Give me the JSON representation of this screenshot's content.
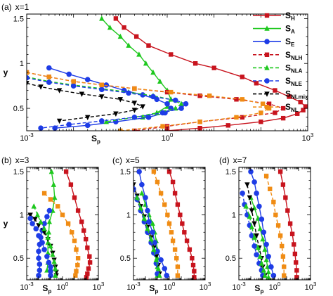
{
  "figure": {
    "legend": [
      {
        "key": "SH",
        "main": "S",
        "sub": "H",
        "color": "#c8141e",
        "dash": false,
        "marker": "square"
      },
      {
        "key": "SA",
        "main": "S",
        "sub": "A",
        "color": "#1ec81e",
        "dash": false,
        "marker": "triangle"
      },
      {
        "key": "SE",
        "main": "S",
        "sub": "E",
        "color": "#1e3ce6",
        "dash": false,
        "marker": "circle"
      },
      {
        "key": "SNLH",
        "main": "S",
        "sub": "NLH",
        "color": "#c8141e",
        "dash": true,
        "marker": "square"
      },
      {
        "key": "SNLA",
        "main": "S",
        "sub": "NLA",
        "color": "#1ec81e",
        "dash": true,
        "marker": "triangle"
      },
      {
        "key": "SNLE",
        "main": "S",
        "sub": "NLE",
        "color": "#1e3ce6",
        "dash": true,
        "marker": "circle"
      },
      {
        "key": "SNLmix",
        "main": "S",
        "sub": "NLmix",
        "color": "#000000",
        "dash": true,
        "marker": "triangle-down"
      },
      {
        "key": "SNL",
        "main": "S",
        "sub": "NL",
        "color": "#f08c14",
        "dash": true,
        "marker": "square"
      }
    ],
    "axes": {
      "xlabel_main": "S",
      "xlabel_sub": "p",
      "ylabel": "y",
      "xticks_top": [
        {
          "base": "10",
          "exp": "-3"
        },
        {
          "base": "10",
          "exp": "0"
        },
        {
          "base": "10",
          "exp": "3"
        }
      ],
      "xticks_bottom": [
        {
          "base": "10",
          "exp": "-3"
        },
        {
          "base": "10",
          "exp": "0"
        },
        {
          "base": "10",
          "exp": "3"
        }
      ],
      "yticks_top": [
        "1.5",
        "1",
        "0.5"
      ],
      "yticks_bottom": [
        "1.5",
        "1",
        "0.5"
      ]
    }
  },
  "chart_data": [
    {
      "type": "line",
      "panel": "(a)",
      "title": "x=1",
      "xscale": "log",
      "xlim": [
        0.001,
        1000
      ],
      "ylim": [
        0.25,
        1.55
      ],
      "series": [
        {
          "name": "SH",
          "x": [
            0.08,
            0.12,
            0.22,
            0.4,
            1.2,
            4,
            10,
            40,
            80,
            200,
            400,
            700,
            900,
            800,
            600,
            300,
            100,
            20,
            5,
            1
          ],
          "y": [
            1.5,
            1.4,
            1.3,
            1.2,
            1.1,
            1.0,
            0.95,
            0.85,
            0.78,
            0.7,
            0.63,
            0.57,
            0.52,
            0.48,
            0.44,
            0.39,
            0.35,
            0.31,
            0.28,
            0.25
          ]
        },
        {
          "name": "SA",
          "x": [
            0.04,
            0.06,
            0.1,
            0.15,
            0.25,
            0.35,
            0.5,
            0.7,
            1.0,
            1.2,
            1.0,
            0.6,
            0.3
          ],
          "y": [
            1.5,
            1.4,
            1.3,
            1.2,
            1.1,
            1.0,
            0.9,
            0.8,
            0.7,
            0.6,
            0.52,
            0.45,
            0.4
          ]
        },
        {
          "name": "SE",
          "x": [
            0.003,
            0.008,
            0.02,
            0.05,
            0.12,
            0.3,
            0.6,
            1.0,
            1.2,
            0.9,
            0.4,
            0.08,
            0.02,
            0.004
          ],
          "y": [
            0.95,
            0.88,
            0.82,
            0.76,
            0.7,
            0.65,
            0.6,
            0.55,
            0.5,
            0.45,
            0.4,
            0.35,
            0.31,
            0.28
          ]
        },
        {
          "name": "SNLH",
          "x": [
            0.001,
            0.003,
            0.01,
            0.04,
            0.2,
            1,
            5,
            30,
            150,
            300,
            200,
            40,
            5,
            1,
            0.2
          ],
          "y": [
            0.9,
            0.85,
            0.8,
            0.76,
            0.72,
            0.68,
            0.64,
            0.6,
            0.55,
            0.5,
            0.45,
            0.4,
            0.35,
            0.3,
            0.25
          ]
        },
        {
          "name": "SNLA",
          "x": [
            0.001,
            0.003,
            0.01,
            0.04,
            0.15,
            0.5,
            1.2,
            2,
            1.5,
            0.6,
            0.2,
            0.05
          ],
          "y": [
            0.85,
            0.8,
            0.76,
            0.72,
            0.68,
            0.64,
            0.6,
            0.55,
            0.5,
            0.45,
            0.4,
            0.35
          ]
        },
        {
          "name": "SNLE",
          "x": [
            0.001,
            0.003,
            0.01,
            0.04,
            0.15,
            0.5,
            1.5,
            2.5,
            2.0,
            0.8,
            0.2,
            0.04,
            0.008,
            0.002
          ],
          "y": [
            0.84,
            0.79,
            0.75,
            0.71,
            0.67,
            0.63,
            0.59,
            0.55,
            0.5,
            0.45,
            0.4,
            0.36,
            0.32,
            0.28
          ]
        },
        {
          "name": "SNLmix",
          "x": [
            0.001,
            0.002,
            0.005,
            0.015,
            0.04,
            0.1,
            0.2,
            0.3,
            0.2,
            0.08,
            0.02,
            0.005
          ],
          "y": [
            0.78,
            0.74,
            0.7,
            0.66,
            0.63,
            0.6,
            0.56,
            0.52,
            0.48,
            0.44,
            0.4,
            0.36
          ]
        },
        {
          "name": "SNL",
          "x": [
            0.001,
            0.003,
            0.01,
            0.04,
            0.2,
            1.2,
            8,
            40,
            110,
            150,
            100,
            30,
            5,
            0.8,
            0.1
          ],
          "y": [
            0.9,
            0.85,
            0.8,
            0.76,
            0.72,
            0.68,
            0.64,
            0.6,
            0.55,
            0.5,
            0.45,
            0.4,
            0.35,
            0.3,
            0.25
          ]
        }
      ]
    },
    {
      "type": "line",
      "panel": "(b)",
      "title": "x=3",
      "xscale": "log",
      "xlim": [
        0.001,
        1000
      ],
      "ylim": [
        0.25,
        1.55
      ],
      "series": [
        {
          "name": "SH",
          "x": [
            2,
            5,
            10,
            20,
            40,
            60,
            90,
            120,
            180,
            200,
            150,
            120,
            100
          ],
          "y": [
            1.5,
            1.35,
            1.2,
            1.05,
            0.92,
            0.82,
            0.72,
            0.62,
            0.52,
            0.45,
            0.38,
            0.32,
            0.28
          ]
        },
        {
          "name": "SA",
          "x": [
            0.12,
            0.18,
            0.22,
            0.15,
            0.08,
            0.07,
            0.06,
            0.06,
            0.06,
            0.05
          ],
          "y": [
            1.5,
            1.35,
            1.2,
            1.05,
            0.92,
            0.8,
            0.68,
            0.56,
            0.45,
            0.36
          ]
        },
        {
          "name": "SE",
          "x": [
            0.08,
            0.05,
            0.03,
            0.02,
            0.015,
            0.012,
            0.01,
            0.01,
            0.012,
            0.012,
            0.01
          ],
          "y": [
            1.05,
            0.98,
            0.9,
            0.82,
            0.74,
            0.66,
            0.58,
            0.5,
            0.43,
            0.36,
            0.3
          ]
        },
        {
          "name": "SNL",
          "x": [
            0.03,
            0.1,
            0.4,
            1,
            3,
            6,
            10,
            14,
            20,
            18,
            14,
            12
          ],
          "y": [
            1.25,
            1.18,
            1.1,
            1.0,
            0.9,
            0.8,
            0.7,
            0.6,
            0.5,
            0.42,
            0.35,
            0.3
          ]
        },
        {
          "name": "SNLmix",
          "x": [
            0.002,
            0.005,
            0.01,
            0.03,
            0.06,
            0.1,
            0.15,
            0.2,
            0.25,
            0.3,
            0.3
          ],
          "y": [
            1.0,
            0.95,
            0.88,
            0.8,
            0.72,
            0.64,
            0.56,
            0.48,
            0.4,
            0.34,
            0.3
          ]
        },
        {
          "name": "SNLE",
          "x": [
            0.002,
            0.003,
            0.006,
            0.01,
            0.02,
            0.03,
            0.05,
            0.07,
            0.1,
            0.1,
            0.1
          ],
          "y": [
            0.96,
            0.9,
            0.84,
            0.76,
            0.68,
            0.6,
            0.52,
            0.45,
            0.4,
            0.35,
            0.3
          ]
        },
        {
          "name": "SNLA",
          "x": [
            0.004,
            0.008,
            0.015,
            0.03,
            0.06,
            0.1,
            0.15,
            0.2,
            0.25,
            0.25
          ],
          "y": [
            1.1,
            1.0,
            0.92,
            0.84,
            0.74,
            0.64,
            0.54,
            0.46,
            0.38,
            0.3
          ]
        }
      ]
    },
    {
      "type": "line",
      "panel": "(c)",
      "title": "x=5",
      "xscale": "log",
      "xlim": [
        0.001,
        1000
      ],
      "ylim": [
        0.25,
        1.55
      ],
      "series": [
        {
          "name": "SH",
          "x": [
            1,
            2,
            3,
            5,
            8,
            12,
            18,
            30,
            50,
            80,
            100,
            120,
            120
          ],
          "y": [
            1.5,
            1.38,
            1.25,
            1.12,
            1.0,
            0.9,
            0.8,
            0.7,
            0.6,
            0.5,
            0.42,
            0.35,
            0.28
          ]
        },
        {
          "name": "SNL",
          "x": [
            0.05,
            0.1,
            0.2,
            0.4,
            0.7,
            1,
            1.5,
            2,
            3,
            4,
            5,
            5
          ],
          "y": [
            1.5,
            1.38,
            1.25,
            1.12,
            1.0,
            0.9,
            0.8,
            0.7,
            0.6,
            0.5,
            0.4,
            0.3
          ]
        },
        {
          "name": "SA",
          "x": [
            0.005,
            0.01,
            0.02,
            0.04,
            0.06,
            0.08,
            0.1,
            0.1,
            0.1,
            0.1
          ],
          "y": [
            1.25,
            1.12,
            1.0,
            0.9,
            0.8,
            0.7,
            0.6,
            0.5,
            0.4,
            0.3
          ]
        },
        {
          "name": "SE",
          "x": [
            0.003,
            0.005,
            0.01,
            0.015,
            0.02,
            0.04,
            0.06,
            0.1,
            0.2,
            0.4,
            0.6
          ],
          "y": [
            1.5,
            1.35,
            1.2,
            1.05,
            0.92,
            0.8,
            0.68,
            0.58,
            0.48,
            0.38,
            0.3
          ]
        },
        {
          "name": "SNLmix",
          "x": [
            0.001,
            0.002,
            0.004,
            0.008,
            0.015,
            0.03,
            0.05,
            0.08,
            0.12,
            0.15
          ],
          "y": [
            1.35,
            1.22,
            1.1,
            0.98,
            0.86,
            0.74,
            0.62,
            0.52,
            0.42,
            0.32
          ]
        },
        {
          "name": "SNLE",
          "x": [
            0.001,
            0.002,
            0.004,
            0.008,
            0.015,
            0.03,
            0.05,
            0.08,
            0.1
          ],
          "y": [
            1.3,
            1.18,
            1.05,
            0.92,
            0.8,
            0.68,
            0.56,
            0.44,
            0.32
          ]
        },
        {
          "name": "SNLA",
          "x": [
            0.002,
            0.004,
            0.008,
            0.015,
            0.03,
            0.05,
            0.08,
            0.12,
            0.15
          ],
          "y": [
            1.2,
            1.08,
            0.96,
            0.84,
            0.72,
            0.6,
            0.48,
            0.38,
            0.3
          ]
        }
      ]
    },
    {
      "type": "line",
      "panel": "(d)",
      "title": "x=7",
      "xscale": "log",
      "xlim": [
        0.001,
        1000
      ],
      "ylim": [
        0.25,
        1.55
      ],
      "series": [
        {
          "name": "SH",
          "x": [
            3,
            5,
            8,
            12,
            20,
            30,
            40,
            50,
            60,
            70,
            70
          ],
          "y": [
            1.5,
            1.35,
            1.2,
            1.05,
            0.9,
            0.78,
            0.66,
            0.55,
            0.45,
            0.36,
            0.28
          ]
        },
        {
          "name": "SNL",
          "x": [
            0.2,
            0.4,
            0.8,
            1.2,
            2,
            3,
            4,
            5,
            6,
            6
          ],
          "y": [
            1.45,
            1.3,
            1.15,
            1.0,
            0.88,
            0.76,
            0.64,
            0.52,
            0.4,
            0.3
          ]
        },
        {
          "name": "SA",
          "x": [
            0.01,
            0.02,
            0.04,
            0.06,
            0.1,
            0.15,
            0.2,
            0.25,
            0.3,
            0.3
          ],
          "y": [
            1.2,
            1.08,
            0.96,
            0.84,
            0.72,
            0.6,
            0.48,
            0.4,
            0.34,
            0.28
          ]
        },
        {
          "name": "SE",
          "x": [
            0.01,
            0.02,
            0.03,
            0.05,
            0.08,
            0.12,
            0.2,
            0.3,
            0.5,
            0.8
          ],
          "y": [
            1.5,
            1.38,
            1.25,
            1.1,
            0.95,
            0.8,
            0.66,
            0.52,
            0.4,
            0.3
          ]
        },
        {
          "name": "SNLmix",
          "x": [
            0.005,
            0.008,
            0.012,
            0.02,
            0.03,
            0.05,
            0.08,
            0.1,
            0.15
          ],
          "y": [
            1.35,
            1.2,
            1.05,
            0.9,
            0.76,
            0.62,
            0.5,
            0.4,
            0.3
          ]
        },
        {
          "name": "SNLE",
          "x": [
            0.002,
            0.003,
            0.005,
            0.008,
            0.012,
            0.02,
            0.03,
            0.05,
            0.08,
            0.1
          ],
          "y": [
            1.25,
            1.12,
            1.0,
            0.88,
            0.76,
            0.64,
            0.54,
            0.44,
            0.36,
            0.3
          ]
        },
        {
          "name": "SNLA",
          "x": [
            0.004,
            0.008,
            0.012,
            0.02,
            0.04,
            0.06,
            0.08,
            0.12,
            0.15
          ],
          "y": [
            1.1,
            0.98,
            0.86,
            0.74,
            0.62,
            0.52,
            0.44,
            0.36,
            0.3
          ]
        }
      ]
    }
  ]
}
